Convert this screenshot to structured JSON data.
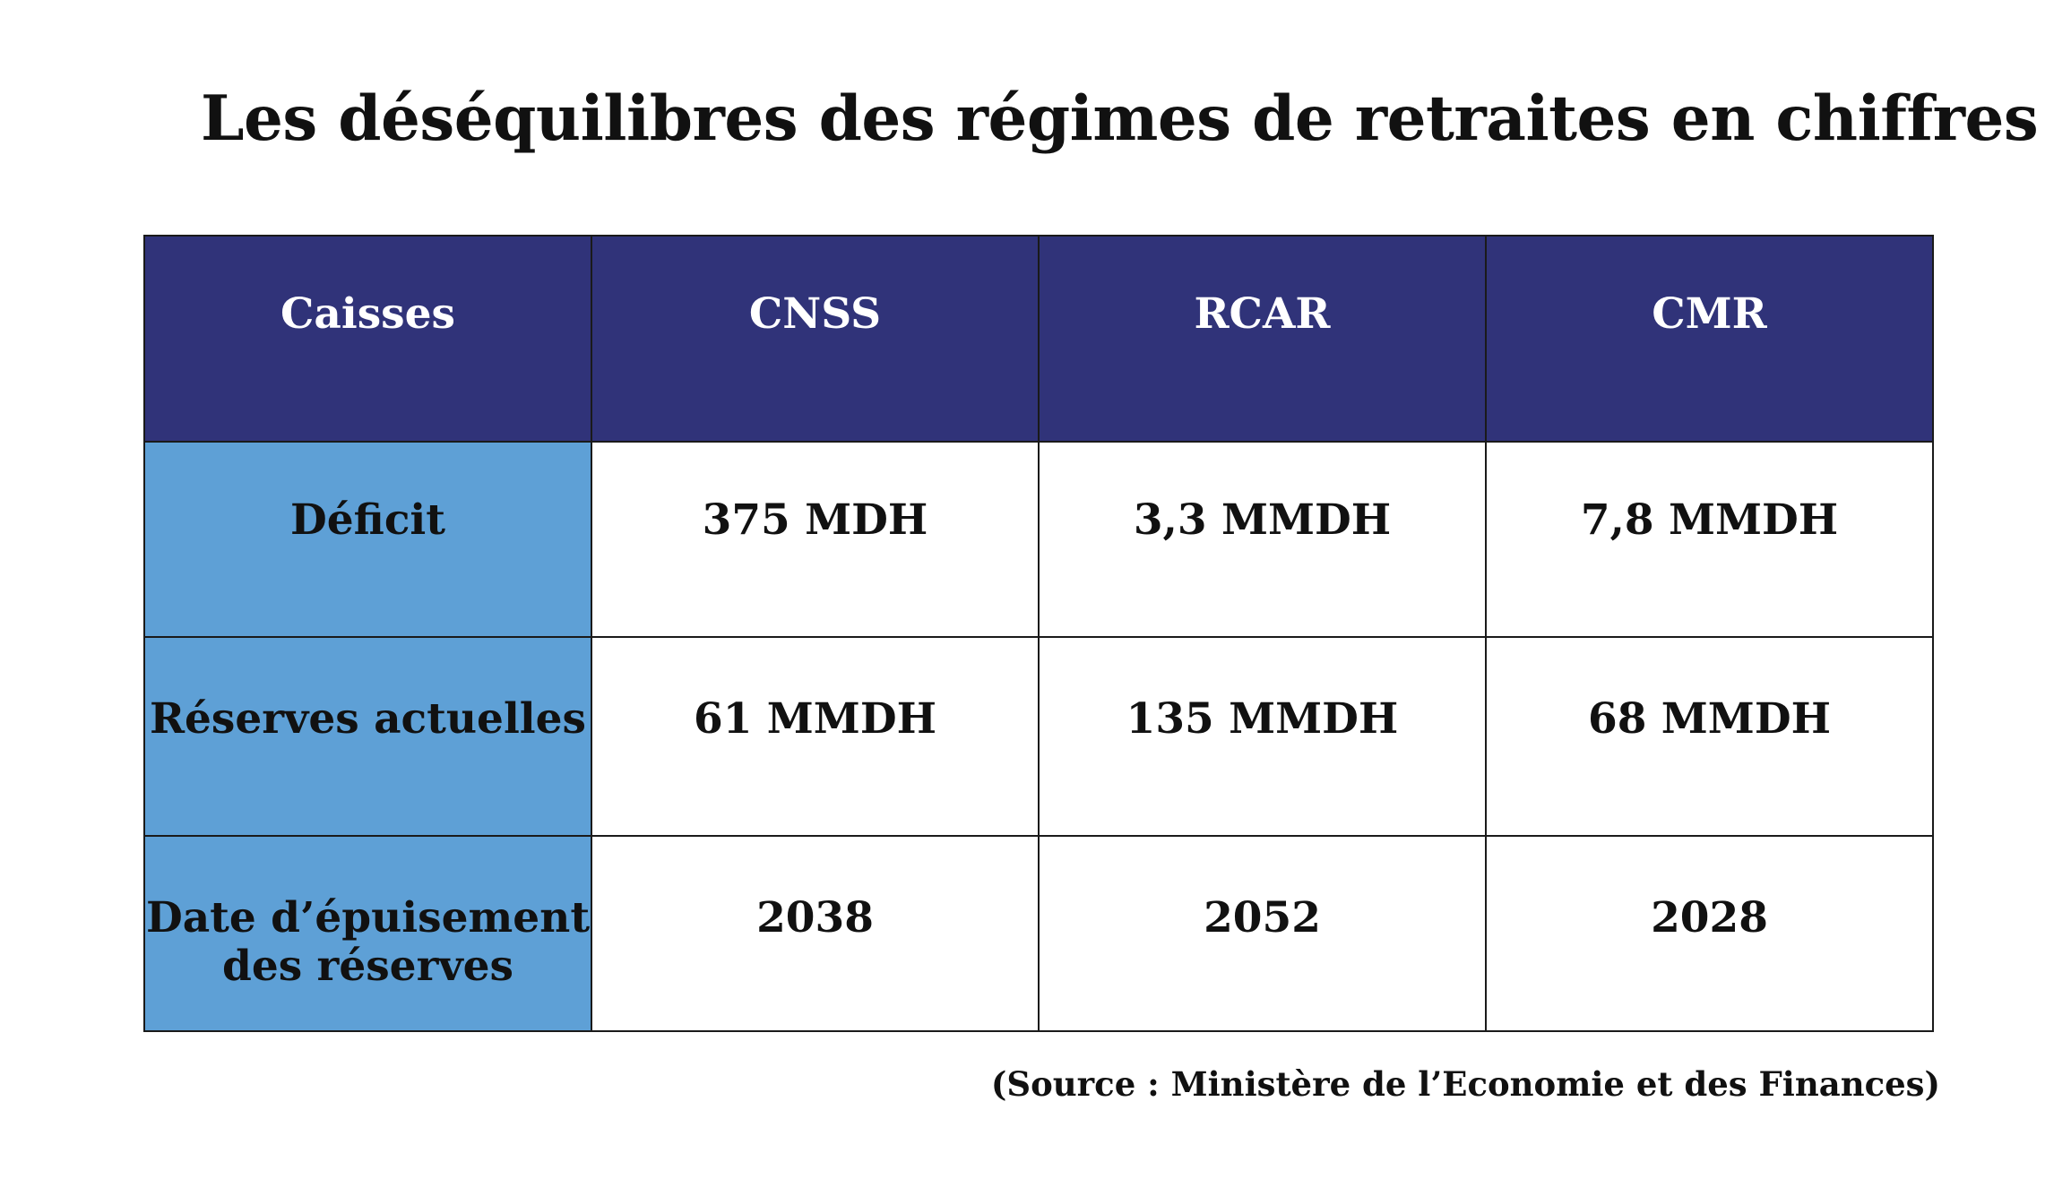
{
  "title": "Les déséquilibres des régimes de retraites en chiffres",
  "colors": {
    "header_bg": "#303379",
    "row_label_bg": "#5ea0d6",
    "cell_bg": "#ffffff",
    "border": "#1a1a1a"
  },
  "chart_data": {
    "type": "table",
    "columns": [
      "Caisses",
      "CNSS",
      "RCAR",
      "CMR"
    ],
    "rows": [
      {
        "label": "Déficit",
        "values": [
          "375 MDH",
          "3,3 MMDH",
          "7,8 MMDH"
        ]
      },
      {
        "label": "Réserves actuelles",
        "values": [
          "61 MMDH",
          "135 MMDH",
          "68 MMDH"
        ]
      },
      {
        "label": "Date d’épuisement des réserves",
        "label_lines": [
          "Date d’épuisement",
          "des réserves"
        ],
        "values": [
          "2038",
          "2052",
          "2028"
        ]
      }
    ]
  },
  "source": "(Source : Ministère de l’Economie et des Finances)"
}
